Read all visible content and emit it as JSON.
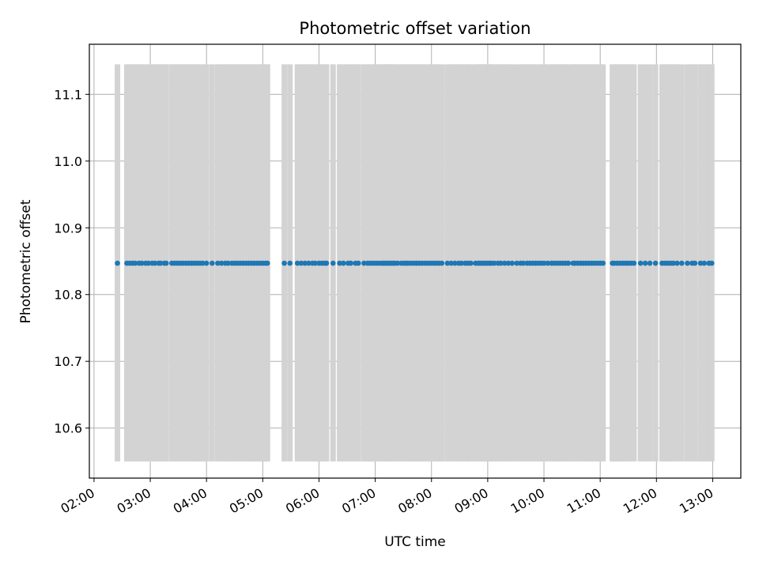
{
  "chart_data": {
    "type": "scatter",
    "title": "Photometric offset variation",
    "xlabel": "UTC time",
    "ylabel": "Photometric offset",
    "x_axis": "time",
    "xlim": [
      "01:55",
      "13:30"
    ],
    "ylim": [
      10.525,
      11.175
    ],
    "xticks": [
      "02:00",
      "03:00",
      "04:00",
      "05:00",
      "06:00",
      "07:00",
      "08:00",
      "09:00",
      "10:00",
      "11:00",
      "12:00",
      "13:00"
    ],
    "yticks": [
      10.6,
      10.7,
      10.8,
      10.9,
      11.0,
      11.1
    ],
    "grid": true,
    "error_bar_color": "#d3d3d3",
    "point_color": "#1f77b4",
    "series": [
      {
        "y_value": 10.847,
        "y_error_low": 10.55,
        "y_error_high": 11.145,
        "x": [
          "02:25",
          "02:35",
          "02:38",
          "02:41",
          "02:44",
          "02:48",
          "02:51",
          "02:55",
          "02:58",
          "03:02",
          "03:05",
          "03:09",
          "03:11",
          "03:15",
          "03:17",
          "03:23",
          "03:26",
          "03:29",
          "03:32",
          "03:35",
          "03:38",
          "03:41",
          "03:44",
          "03:47",
          "03:50",
          "03:53",
          "03:56",
          "04:00",
          "04:06",
          "04:12",
          "04:16",
          "04:20",
          "04:23",
          "04:27",
          "04:30",
          "04:33",
          "04:36",
          "04:39",
          "04:42",
          "04:45",
          "04:48",
          "04:51",
          "04:54",
          "04:57",
          "05:00",
          "05:03",
          "05:05",
          "05:23",
          "05:29",
          "05:37",
          "05:41",
          "05:45",
          "05:49",
          "05:53",
          "05:56",
          "06:00",
          "06:03",
          "06:06",
          "06:08",
          "06:15",
          "06:22",
          "06:26",
          "06:31",
          "06:34",
          "06:39",
          "06:42",
          "06:48",
          "06:52",
          "06:55",
          "06:58",
          "07:01",
          "07:04",
          "07:07",
          "07:09",
          "07:11",
          "07:13",
          "07:15",
          "07:17",
          "07:19",
          "07:21",
          "07:24",
          "07:28",
          "07:31",
          "07:33",
          "07:35",
          "07:38",
          "07:41",
          "07:44",
          "07:47",
          "07:50",
          "07:53",
          "07:56",
          "07:59",
          "08:02",
          "08:05",
          "08:08",
          "08:11",
          "08:17",
          "08:21",
          "08:25",
          "08:29",
          "08:32",
          "08:36",
          "08:39",
          "08:42",
          "08:47",
          "08:50",
          "08:52",
          "08:54",
          "08:56",
          "08:58",
          "09:00",
          "09:02",
          "09:04",
          "09:07",
          "09:11",
          "09:14",
          "09:18",
          "09:22",
          "09:26",
          "09:31",
          "09:35",
          "09:38",
          "09:42",
          "09:45",
          "09:48",
          "09:51",
          "09:54",
          "09:57",
          "10:00",
          "10:04",
          "10:08",
          "10:11",
          "10:14",
          "10:17",
          "10:20",
          "10:23",
          "10:26",
          "10:31",
          "10:33",
          "10:36",
          "10:39",
          "10:42",
          "10:45",
          "10:48",
          "10:51",
          "10:54",
          "10:57",
          "11:00",
          "11:03",
          "11:13",
          "11:15",
          "11:18",
          "11:21",
          "11:24",
          "11:27",
          "11:30",
          "11:33",
          "11:36",
          "11:43",
          "11:48",
          "11:53",
          "11:59",
          "12:06",
          "12:09",
          "12:12",
          "12:15",
          "12:18",
          "12:22",
          "12:27",
          "12:33",
          "12:38",
          "12:41",
          "12:47",
          "12:51",
          "12:56",
          "12:59"
        ]
      }
    ]
  }
}
